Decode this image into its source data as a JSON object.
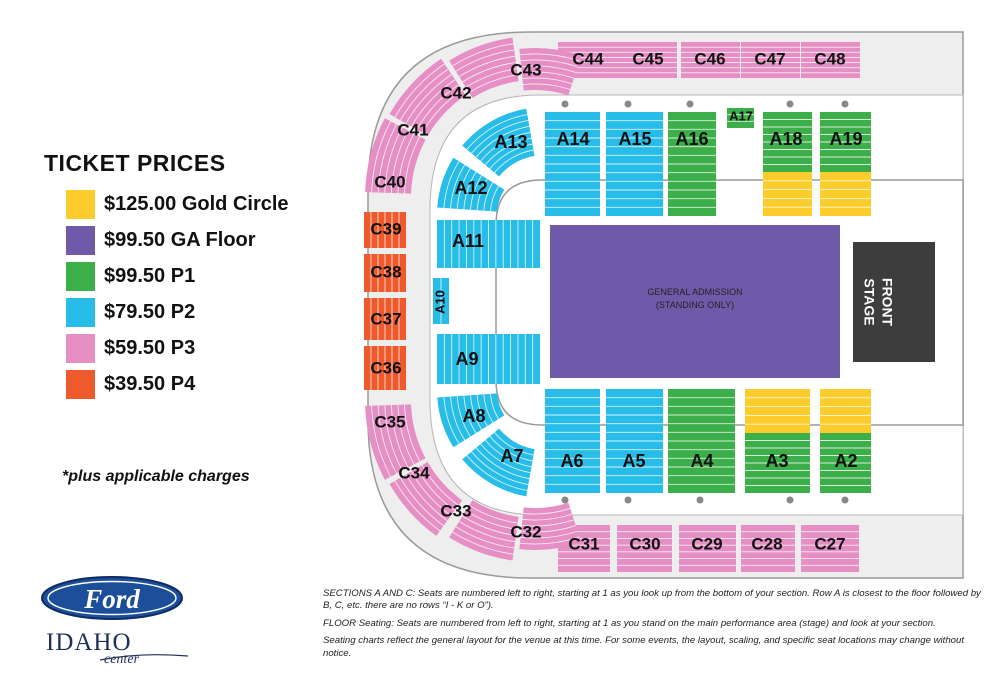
{
  "legend": {
    "title": "TICKET PRICES",
    "items": [
      {
        "label": "$125.00 Gold Circle",
        "color": "#fccc2c",
        "tier": "gold"
      },
      {
        "label": "$99.50 GA Floor",
        "color": "#6e5aa8",
        "tier": "ga"
      },
      {
        "label": "$99.50 P1",
        "color": "#3cae4a",
        "tier": "p1"
      },
      {
        "label": "$79.50 P2",
        "color": "#28bde8",
        "tier": "p2"
      },
      {
        "label": "$59.50 P3",
        "color": "#e58fc4",
        "tier": "p3"
      },
      {
        "label": "$39.50 P4",
        "color": "#ef5a2c",
        "tier": "p4"
      }
    ],
    "note": "*plus applicable charges"
  },
  "map": {
    "floor_label": "GENERAL ADMISSION",
    "floor_sublabel": "(STANDING ONLY)",
    "stage_label": "STAGE",
    "stage_sublabel": "FRONT",
    "sections": [
      {
        "name": "C44",
        "tier": "p3"
      },
      {
        "name": "C45",
        "tier": "p3"
      },
      {
        "name": "C46",
        "tier": "p3"
      },
      {
        "name": "C47",
        "tier": "p3"
      },
      {
        "name": "C48",
        "tier": "p3"
      },
      {
        "name": "C43",
        "tier": "p3"
      },
      {
        "name": "C42",
        "tier": "p3"
      },
      {
        "name": "C41",
        "tier": "p3"
      },
      {
        "name": "C40",
        "tier": "p3"
      },
      {
        "name": "C39",
        "tier": "p4"
      },
      {
        "name": "C38",
        "tier": "p4"
      },
      {
        "name": "C37",
        "tier": "p4"
      },
      {
        "name": "C36",
        "tier": "p4"
      },
      {
        "name": "C35",
        "tier": "p3"
      },
      {
        "name": "C34",
        "tier": "p3"
      },
      {
        "name": "C33",
        "tier": "p3"
      },
      {
        "name": "C32",
        "tier": "p3"
      },
      {
        "name": "C31",
        "tier": "p3"
      },
      {
        "name": "C30",
        "tier": "p3"
      },
      {
        "name": "C29",
        "tier": "p3"
      },
      {
        "name": "C28",
        "tier": "p3"
      },
      {
        "name": "C27",
        "tier": "p3"
      },
      {
        "name": "A13",
        "tier": "p2"
      },
      {
        "name": "A14",
        "tier": "p2"
      },
      {
        "name": "A15",
        "tier": "p2"
      },
      {
        "name": "A16",
        "tier": "p1"
      },
      {
        "name": "A17",
        "tier": "p1"
      },
      {
        "name": "A18",
        "tier": "p1"
      },
      {
        "name": "A19",
        "tier": "p1"
      },
      {
        "name": "A12",
        "tier": "p2"
      },
      {
        "name": "A11",
        "tier": "p2"
      },
      {
        "name": "A10",
        "tier": "p2"
      },
      {
        "name": "A9",
        "tier": "p2"
      },
      {
        "name": "A8",
        "tier": "p2"
      },
      {
        "name": "A7",
        "tier": "p2"
      },
      {
        "name": "A6",
        "tier": "p2"
      },
      {
        "name": "A5",
        "tier": "p2"
      },
      {
        "name": "A4",
        "tier": "p1"
      },
      {
        "name": "A3",
        "tier": "p1"
      },
      {
        "name": "A2",
        "tier": "p1"
      }
    ]
  },
  "notes": [
    "SECTIONS A AND C: Seats are numbered left to right, starting at 1 as you look up from the bottom of your section.  Row A is closest to the floor followed by B, C, etc. there are no rows “I - K or O”).",
    "FLOOR Seating: Seats are numbered from left to right, starting at 1 as you stand on the main performance area (stage) and look at your section.",
    "Seating charts reflect the general layout for the venue at this time. For some events, the layout, scaling, and specific seat locations may change without notice."
  ],
  "logo": {
    "brand": "Ford",
    "line1": "IDAHO",
    "line2": "center"
  }
}
